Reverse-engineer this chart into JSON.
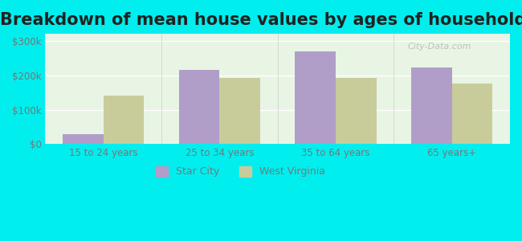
{
  "title": "Breakdown of mean house values by ages of householders",
  "categories": [
    "15 to 24 years",
    "25 to 34 years",
    "35 to 64 years",
    "65 years+"
  ],
  "star_city_values": [
    30000,
    215000,
    270000,
    222000
  ],
  "west_virginia_values": [
    140000,
    193000,
    193000,
    175000
  ],
  "star_city_color": "#b09ec9",
  "west_virginia_color": "#c8cc9a",
  "ylim": [
    0,
    320000
  ],
  "yticks": [
    0,
    100000,
    200000,
    300000
  ],
  "ytick_labels": [
    "$0",
    "$100k",
    "$200k",
    "$300k"
  ],
  "background_color": "#00eeee",
  "plot_bg_start": "#e8f5e8",
  "plot_bg_end": "#ffffff",
  "title_fontsize": 15,
  "bar_width": 0.35,
  "legend_labels": [
    "Star City",
    "West Virginia"
  ],
  "watermark": "City-Data.com"
}
